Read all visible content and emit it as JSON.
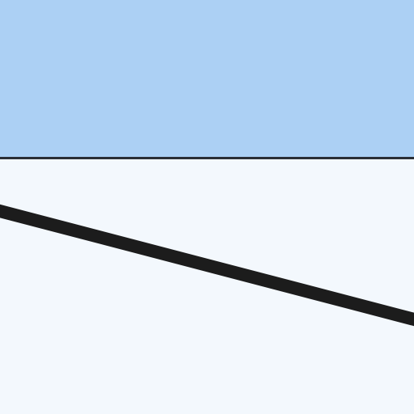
{
  "colors": {
    "header_fill": "#acd0f4",
    "header_border": "#2a2e35",
    "body_fill": "#f3f8fd",
    "connector_stroke": "#1c1c1c"
  },
  "elements": {
    "header_band": {
      "kind": "shape",
      "fill_role": "header_fill"
    },
    "body_area": {
      "kind": "shape",
      "fill_role": "body_fill"
    },
    "connector": {
      "kind": "line",
      "stroke_role": "connector_stroke"
    }
  }
}
